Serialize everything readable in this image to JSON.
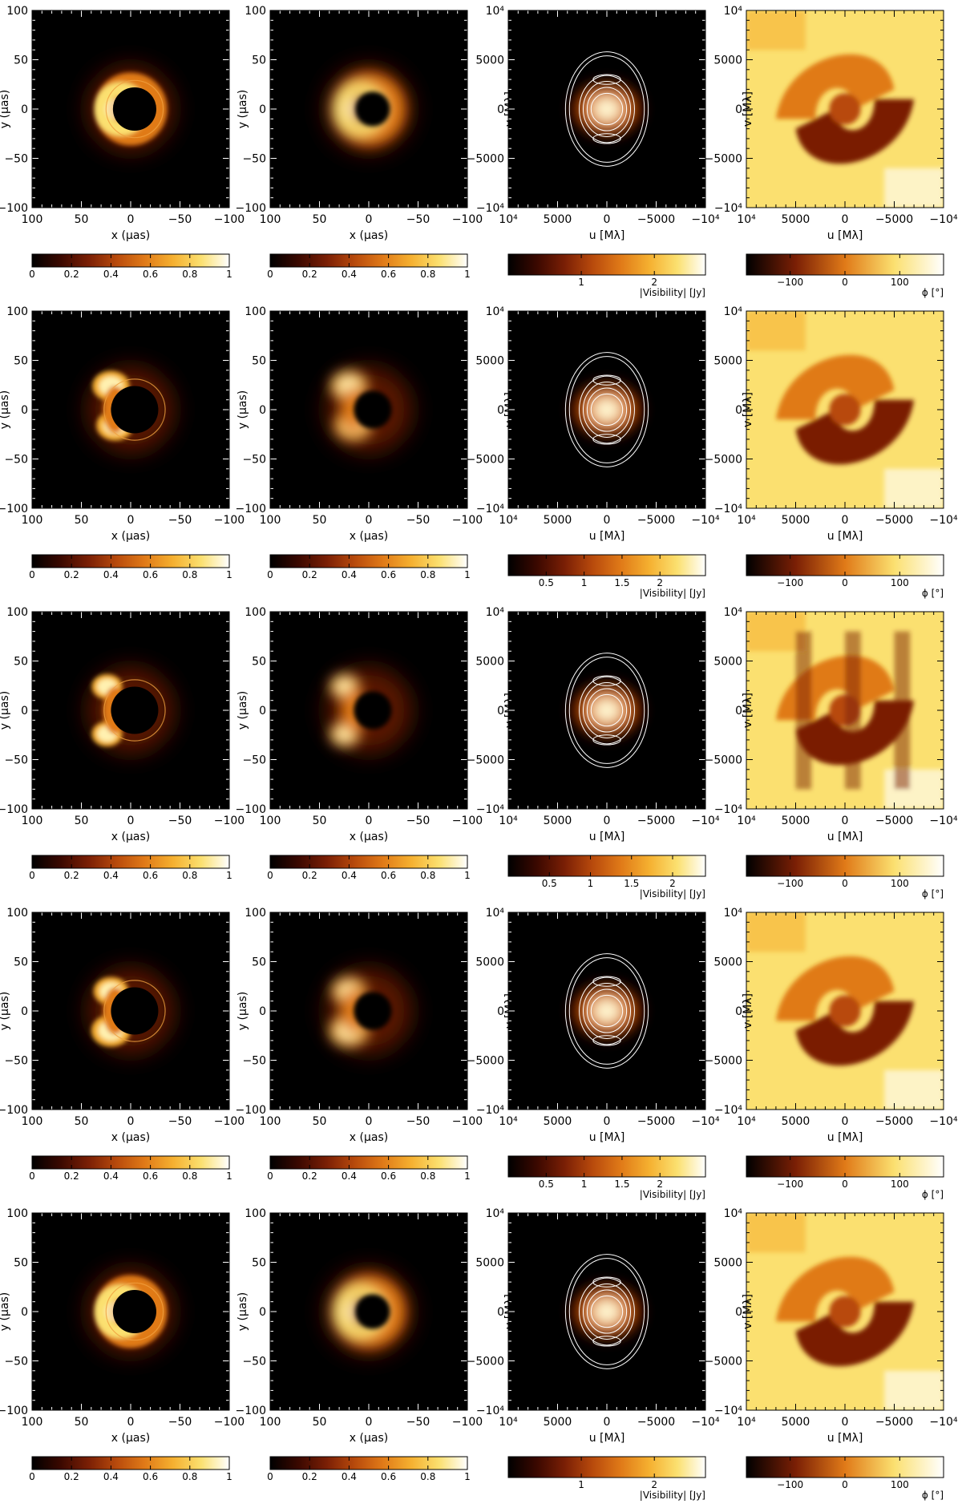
{
  "colormap": [
    "#000000",
    "#3a0800",
    "#7a1f05",
    "#b84a0c",
    "#e07a18",
    "#f5b030",
    "#fbe070",
    "#ffffff"
  ],
  "chart_data": {
    "type": "heatmap",
    "rows": [
      {
        "image_axes": {
          "xlabel": "x (μas)",
          "ylabel": "y (μas)",
          "xticks": [
            "100",
            "50",
            "0",
            "−50",
            "−100"
          ],
          "yticks": [
            "100",
            "50",
            "0",
            "−50",
            "−100"
          ],
          "xlim": [
            100,
            -100
          ],
          "ylim": [
            -100,
            100
          ]
        },
        "uv_axes": {
          "xlabel": "u [Mλ]",
          "ylabel": "v [Mλ]",
          "xticks": [
            "10⁴",
            "5000",
            "0",
            "−5000",
            "−10⁴"
          ],
          "yticks": [
            "10⁴",
            "5000",
            "0",
            "−5000",
            "−10⁴"
          ],
          "xlim": [
            10000,
            -10000
          ],
          "ylim": [
            -10000,
            10000
          ]
        },
        "colorbar_intensity": {
          "ticks": [
            "0",
            "0.2",
            "0.4",
            "0.6",
            "0.8",
            "1"
          ],
          "range": [
            0,
            1
          ]
        },
        "colorbar_visibility": {
          "ticks": [
            "1",
            "2"
          ],
          "label": "|Visibility| [Jy]",
          "range": [
            0,
            2.7
          ]
        },
        "colorbar_phase": {
          "ticks": [
            "−100",
            "0",
            "100"
          ],
          "label": "ϕ [°]",
          "range": [
            -180,
            180
          ]
        }
      },
      {
        "image_axes": {
          "xlabel": "x (μas)",
          "ylabel": "y (μas)",
          "xticks": [
            "100",
            "50",
            "0",
            "−50",
            "−100"
          ],
          "yticks": [
            "100",
            "50",
            "0",
            "−50",
            "−100"
          ],
          "xlim": [
            100,
            -100
          ],
          "ylim": [
            -100,
            100
          ]
        },
        "uv_axes": {
          "xlabel": "u [Mλ]",
          "ylabel": "v [Mλ]",
          "xticks": [
            "10⁴",
            "5000",
            "0",
            "−5000",
            "−10⁴"
          ],
          "yticks": [
            "10⁴",
            "5000",
            "0",
            "−5000",
            "−10⁴"
          ],
          "xlim": [
            10000,
            -10000
          ],
          "ylim": [
            -10000,
            10000
          ]
        },
        "colorbar_intensity": {
          "ticks": [
            "0",
            "0.2",
            "0.4",
            "0.6",
            "0.8",
            "1"
          ],
          "range": [
            0,
            1
          ]
        },
        "colorbar_visibility": {
          "ticks": [
            "0.5",
            "1",
            "1.5",
            "2"
          ],
          "label": "|Visibility| [Jy]",
          "range": [
            0,
            2.6
          ]
        },
        "colorbar_phase": {
          "ticks": [
            "−100",
            "0",
            "100"
          ],
          "label": "ϕ [°]",
          "range": [
            -180,
            180
          ]
        }
      },
      {
        "image_axes": {
          "xlabel": "x (μas)",
          "ylabel": "y (μas)",
          "xticks": [
            "100",
            "50",
            "0",
            "−50",
            "−100"
          ],
          "yticks": [
            "100",
            "50",
            "0",
            "−50",
            "−100"
          ],
          "xlim": [
            100,
            -100
          ],
          "ylim": [
            -100,
            100
          ]
        },
        "uv_axes": {
          "xlabel": "u [Mλ]",
          "ylabel": "v [Mλ]",
          "xticks": [
            "10⁴",
            "5000",
            "0",
            "−5000",
            "−10⁴"
          ],
          "yticks": [
            "10⁴",
            "5000",
            "0",
            "−5000",
            "−10⁴"
          ],
          "xlim": [
            10000,
            -10000
          ],
          "ylim": [
            -10000,
            10000
          ]
        },
        "colorbar_intensity": {
          "ticks": [
            "0",
            "0.2",
            "0.4",
            "0.6",
            "0.8",
            "1"
          ],
          "range": [
            0,
            1
          ]
        },
        "colorbar_visibility": {
          "ticks": [
            "0.5",
            "1",
            "1.5",
            "2"
          ],
          "label": "|Visibility| [Jy]",
          "range": [
            0,
            2.4
          ]
        },
        "colorbar_phase": {
          "ticks": [
            "−100",
            "0",
            "100"
          ],
          "label": "ϕ [°]",
          "range": [
            -180,
            180
          ]
        }
      },
      {
        "image_axes": {
          "xlabel": "x (μas)",
          "ylabel": "y (μas)",
          "xticks": [
            "100",
            "50",
            "0",
            "−50",
            "−100"
          ],
          "yticks": [
            "100",
            "50",
            "0",
            "−50",
            "−100"
          ],
          "xlim": [
            100,
            -100
          ],
          "ylim": [
            -100,
            100
          ]
        },
        "uv_axes": {
          "xlabel": "u [Mλ]",
          "ylabel": "v [Mλ]",
          "xticks": [
            "10⁴",
            "5000",
            "0",
            "−5000",
            "−10⁴"
          ],
          "yticks": [
            "10⁴",
            "5000",
            "0",
            "−5000",
            "−10⁴"
          ],
          "xlim": [
            10000,
            -10000
          ],
          "ylim": [
            -10000,
            10000
          ]
        },
        "colorbar_intensity": {
          "ticks": [
            "0",
            "0.2",
            "0.4",
            "0.6",
            "0.8",
            "1"
          ],
          "range": [
            0,
            1
          ]
        },
        "colorbar_visibility": {
          "ticks": [
            "0.5",
            "1",
            "1.5",
            "2"
          ],
          "label": "|Visibility| [Jy]",
          "range": [
            0,
            2.6
          ]
        },
        "colorbar_phase": {
          "ticks": [
            "−100",
            "0",
            "100"
          ],
          "label": "ϕ [°]",
          "range": [
            -180,
            180
          ]
        }
      },
      {
        "image_axes": {
          "xlabel": "x (μas)",
          "ylabel": "y (μas)",
          "xticks": [
            "100",
            "50",
            "0",
            "−50",
            "−100"
          ],
          "yticks": [
            "100",
            "50",
            "0",
            "−50",
            "−100"
          ],
          "xlim": [
            100,
            -100
          ],
          "ylim": [
            -100,
            100
          ]
        },
        "uv_axes": {
          "xlabel": "u [Mλ]",
          "ylabel": "v [Mλ]",
          "xticks": [
            "10⁴",
            "5000",
            "0",
            "−5000",
            "−10⁴"
          ],
          "yticks": [
            "10⁴",
            "5000",
            "0",
            "−5000",
            "−10⁴"
          ],
          "xlim": [
            10000,
            -10000
          ],
          "ylim": [
            -10000,
            10000
          ]
        },
        "colorbar_intensity": {
          "ticks": [
            "0",
            "0.2",
            "0.4",
            "0.6",
            "0.8",
            "1"
          ],
          "range": [
            0,
            1
          ]
        },
        "colorbar_visibility": {
          "ticks": [
            "1",
            "2"
          ],
          "label": "|Visibility| [Jy]",
          "range": [
            0,
            2.7
          ]
        },
        "colorbar_phase": {
          "ticks": [
            "−100",
            "0",
            "100"
          ],
          "label": "ϕ [°]",
          "range": [
            -180,
            180
          ]
        }
      }
    ]
  }
}
